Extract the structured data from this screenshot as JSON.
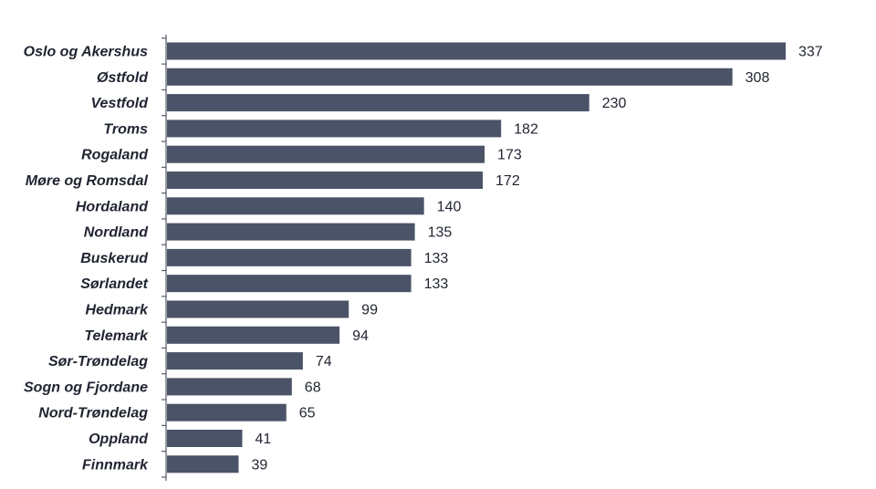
{
  "chart_data": {
    "type": "bar",
    "orientation": "horizontal",
    "categories": [
      "Oslo og Akershus",
      "Østfold",
      "Vestfold",
      "Troms",
      "Rogaland",
      "Møre og Romsdal",
      "Hordaland",
      "Nordland",
      "Buskerud",
      "Sørlandet",
      "Hedmark",
      "Telemark",
      "Sør-Trøndelag",
      "Sogn og Fjordane",
      "Nord-Trøndelag",
      "Oppland",
      "Finnmark"
    ],
    "values": [
      337,
      308,
      230,
      182,
      173,
      172,
      140,
      135,
      133,
      133,
      99,
      94,
      74,
      68,
      65,
      41,
      39
    ],
    "xlim": [
      0,
      337
    ],
    "title": "",
    "xlabel": "",
    "ylabel": "",
    "grid": false,
    "data_labels": true,
    "bar_color": "#4a5367"
  }
}
